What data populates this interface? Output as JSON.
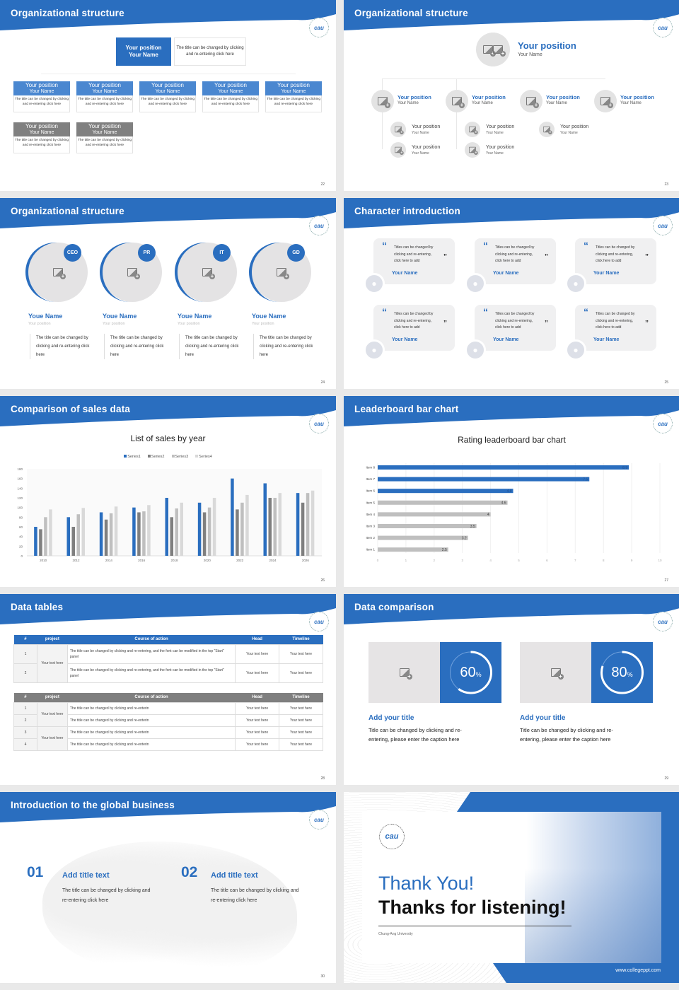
{
  "brand_color": "#2a6ebf",
  "logo_text": "cau",
  "slides": [
    {
      "num": "22",
      "title": "Organizational structure",
      "top": {
        "position": "Your position",
        "name": "Your Name",
        "desc": "The title can be changed by clicking and re-entering click here"
      },
      "row1": [
        {
          "position": "Your position",
          "name": "Your Name",
          "desc": "The title can be changed by clicking and re-entering click here"
        },
        {
          "position": "Your position",
          "name": "Your Name",
          "desc": "The title can be changed by clicking and re-entering click here"
        },
        {
          "position": "Your position",
          "name": "Your Name",
          "desc": "The title can be changed by clicking and re-entering click here"
        },
        {
          "position": "Your position",
          "name": "Your Name",
          "desc": "The title can be changed by clicking and re-entering click here"
        },
        {
          "position": "Your position",
          "name": "Your Name",
          "desc": "The title can be changed by clicking and re-entering click here"
        }
      ],
      "row2": [
        {
          "position": "Your position",
          "name": "Your Name",
          "desc": "The title can be changed by clicking and re-entering click here"
        },
        {
          "position": "Your position",
          "name": "Your Name",
          "desc": "The title can be changed by clicking and re-entering click here"
        }
      ]
    },
    {
      "num": "23",
      "title": "Organizational structure",
      "top": {
        "position": "Your position",
        "name": "Your Name"
      },
      "level1": [
        {
          "position": "Your position",
          "name": "Your Name"
        },
        {
          "position": "Your position",
          "name": "Your Name"
        },
        {
          "position": "Your position",
          "name": "Your Name"
        },
        {
          "position": "Your position",
          "name": "Your Name"
        }
      ],
      "level2": [
        {
          "position": "Your position",
          "name": "Your Name"
        },
        {
          "position": "Your position",
          "name": "Your Name"
        },
        {
          "position": "Your position",
          "name": "Your Name"
        },
        {
          "position": "Your position",
          "name": "Your Name"
        },
        {
          "position": "Your position",
          "name": "Your Name"
        }
      ]
    },
    {
      "num": "24",
      "title": "Organizational structure",
      "people": [
        {
          "badge": "CEO",
          "name": "Youe Name",
          "position": "Your position",
          "desc": "The title can be changed by clicking and re-entering click here"
        },
        {
          "badge": "PR",
          "name": "Youe Name",
          "position": "Your position",
          "desc": "The title can be changed by clicking and re-entering click here"
        },
        {
          "badge": "IT",
          "name": "Youe Name",
          "position": "Your position",
          "desc": "The title can be changed by clicking and re-entering click here"
        },
        {
          "badge": "GD",
          "name": "Youe Name",
          "position": "Your position",
          "desc": "The title can be changed by clicking and re-entering click here"
        }
      ]
    },
    {
      "num": "25",
      "title": "Character introduction",
      "quotes": [
        {
          "text": "Titles can be changed by clicking and re-entering, click here to add",
          "name": "Your Name"
        },
        {
          "text": "Titles can be changed by clicking and re-entering, click here to add",
          "name": "Your Name"
        },
        {
          "text": "Titles can be changed by clicking and re-entering, click here to add",
          "name": "Your Name"
        },
        {
          "text": "Titles can be changed by clicking and re-entering, click here to add",
          "name": "Your Name"
        },
        {
          "text": "Titles can be changed by clicking and re-entering, click here to add",
          "name": "Your Name"
        },
        {
          "text": "Titles can be changed by clicking and re-entering, click here to add",
          "name": "Your Name"
        }
      ]
    },
    {
      "num": "26",
      "title": "Comparison of sales data"
    },
    {
      "num": "27",
      "title": "Leaderboard bar chart"
    },
    {
      "num": "28",
      "title": "Data tables",
      "table1": {
        "headers": [
          "#",
          "project",
          "Course of action",
          "Head",
          "Timeline"
        ],
        "project": "Your text here",
        "rows": [
          [
            "1",
            "The title can be changed by clicking and re-entering, and the font can be modified in the top \"Start\" panel",
            "Your text here",
            "Your text here"
          ],
          [
            "2",
            "The title can be changed by clicking and re-entering, and the font can be modified in the top \"Start\" panel",
            "Your text here",
            "Your text here"
          ]
        ]
      },
      "table2": {
        "headers": [
          "#",
          "project",
          "Course of action",
          "Head",
          "Timeline"
        ],
        "projects": [
          "Your text here",
          "Your text here"
        ],
        "rows": [
          [
            "1",
            "The title can be changed by clicking and re-enterin",
            "Your text here",
            "Your text here"
          ],
          [
            "2",
            "The title can be changed by clicking and re-enterin",
            "Your text here",
            "Your text here"
          ],
          [
            "3",
            "The title can be changed by clicking and re-enterin",
            "Your text here",
            "Your text here"
          ],
          [
            "4",
            "The title can be changed by clicking and re-enterin",
            "Your text here",
            "Your text here"
          ]
        ]
      }
    },
    {
      "num": "29",
      "title": "Data comparison",
      "items": [
        {
          "percent": 60,
          "value": "60",
          "unit": "%",
          "title": "Add your title",
          "desc": "Title can be changed by clicking and re-entering, please enter the caption here"
        },
        {
          "percent": 80,
          "value": "80",
          "unit": "%",
          "title": "Add your title",
          "desc": "Title can be changed by clicking and re-entering, please enter the caption here"
        }
      ]
    },
    {
      "num": "30",
      "title": "Introduction to the global business",
      "items": [
        {
          "no": "01",
          "title": "Add title text",
          "desc": "The title can be changed by clicking and re-entering click here"
        },
        {
          "no": "02",
          "title": "Add title text",
          "desc": "The title can be changed by clicking and re-entering click here"
        }
      ]
    },
    {
      "thank": "Thank You!",
      "listening": "Thanks for listening!",
      "university": "Chung-Ang University",
      "url": "www.collegeppt.com"
    }
  ],
  "chart_data": [
    {
      "type": "bar",
      "title": "List of sales by year",
      "categories": [
        "2010",
        "2012",
        "2014",
        "2016",
        "2018",
        "2020",
        "2022",
        "2024",
        "2026"
      ],
      "series": [
        {
          "name": "Series1",
          "color": "#2a6ebf",
          "values": [
            60,
            80,
            90,
            100,
            120,
            110,
            160,
            150,
            130
          ]
        },
        {
          "name": "Series2",
          "color": "#7f7f7f",
          "values": [
            55,
            60,
            75,
            90,
            80,
            90,
            96,
            120,
            110
          ]
        },
        {
          "name": "Series3",
          "color": "#bfbfbf",
          "values": [
            80,
            86,
            88,
            92,
            98,
            100,
            110,
            120,
            130
          ]
        },
        {
          "name": "Series4",
          "color": "#d9d9d9",
          "values": [
            96,
            99,
            102,
            105,
            110,
            120,
            126,
            130,
            135
          ]
        }
      ],
      "ylim": [
        0,
        180
      ],
      "yticks": [
        0,
        20,
        40,
        60,
        80,
        100,
        120,
        140,
        160,
        180
      ],
      "legend": "top",
      "grid": false
    },
    {
      "type": "bar",
      "orientation": "horizontal",
      "title": "Rating leaderboard bar chart",
      "categories": [
        "Item 8",
        "Item 7",
        "Item 6",
        "Item 5",
        "Item 4",
        "Item 3",
        "Item 2",
        "Item 1"
      ],
      "values": [
        8.9,
        7.5,
        4.8,
        4.6,
        4,
        3.5,
        3.2,
        2.5
      ],
      "labels": [
        "8.9",
        "7.5",
        "4.8",
        "4.6",
        "4",
        "3.5",
        "3.2",
        "2.5"
      ],
      "highlight_color": "#2a6ebf",
      "base_color": "#bfbfbf",
      "highlight_count": 3,
      "xlim": [
        0,
        10
      ],
      "xticks": [
        "0",
        "1",
        "2",
        "3",
        "4",
        "5",
        "6",
        "7",
        "8",
        "9",
        "10"
      ],
      "grid": true
    }
  ]
}
